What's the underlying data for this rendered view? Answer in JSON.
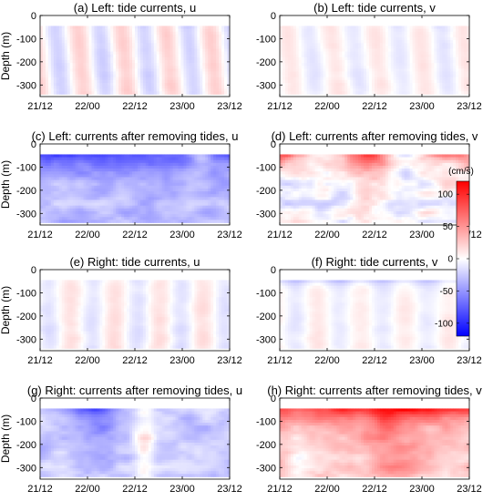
{
  "chart_data": {
    "type": "heatmap",
    "panels": [
      {
        "id": "a",
        "title": "(a) Left: tide currents, u",
        "pattern": "tide_u"
      },
      {
        "id": "b",
        "title": "(b) Left: tide currents, v",
        "pattern": "tide_v"
      },
      {
        "id": "c",
        "title": "(c) Left: currents after removing tides, u",
        "pattern": "resid_left_u"
      },
      {
        "id": "d",
        "title": "(d) Left: currents after removing tides, v",
        "pattern": "resid_left_v"
      },
      {
        "id": "e",
        "title": "(e) Right: tide currents, u",
        "pattern": "tide_right_u"
      },
      {
        "id": "f",
        "title": "(f) Right: tide currents, v",
        "pattern": "tide_right_v"
      },
      {
        "id": "g",
        "title": "(g) Right: currents after removing tides, u",
        "pattern": "resid_right_u"
      },
      {
        "id": "h",
        "title": "(h) Right: currents after removing tides, v",
        "pattern": "resid_right_v"
      }
    ],
    "ylabel": "Depth (m)",
    "ylim": [
      -350,
      0
    ],
    "yticks": [
      0,
      -100,
      -200,
      -300
    ],
    "data_depth_range": [
      -340,
      -45
    ],
    "xticks": [
      "21/12",
      "22/00",
      "22/12",
      "23/00",
      "23/12"
    ],
    "colorbar": {
      "label": "(cm/s)",
      "ticks": [
        100,
        50,
        0,
        -50,
        -100
      ],
      "range": [
        -120,
        120
      ],
      "colors": {
        "negative": "#0000ff",
        "zero": "#ffffff",
        "positive": "#ff0000"
      }
    }
  }
}
